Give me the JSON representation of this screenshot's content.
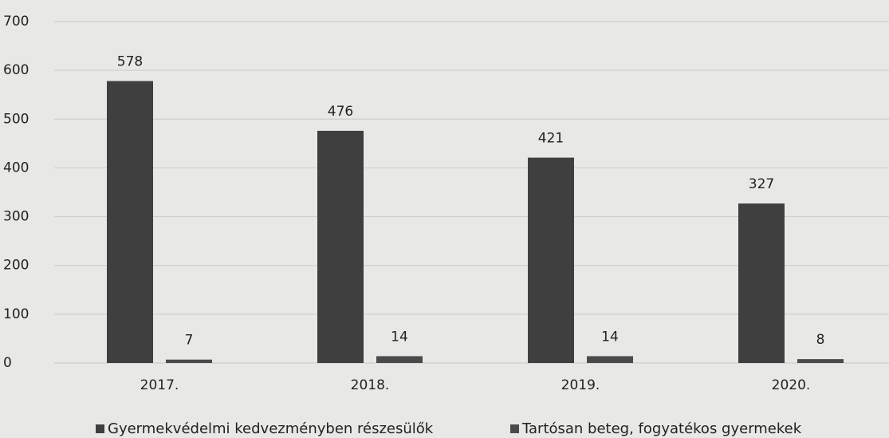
{
  "chart_data": {
    "type": "bar",
    "categories": [
      "2017.",
      "2018.",
      "2019.",
      "2020."
    ],
    "series": [
      {
        "name": "Gyermekvédelmi kedvezményben részesülők",
        "color": "#3f3f3f",
        "values": [
          578,
          476,
          421,
          327
        ]
      },
      {
        "name": "Tartósan beteg, fogyatékos gyermekek",
        "color": "#4a4a4a",
        "values": [
          7,
          14,
          14,
          8
        ]
      }
    ],
    "ylim": [
      0,
      700
    ],
    "yticks": [
      0,
      100,
      200,
      300,
      400,
      500,
      600,
      700
    ],
    "grid": true,
    "legend": "bottom"
  }
}
